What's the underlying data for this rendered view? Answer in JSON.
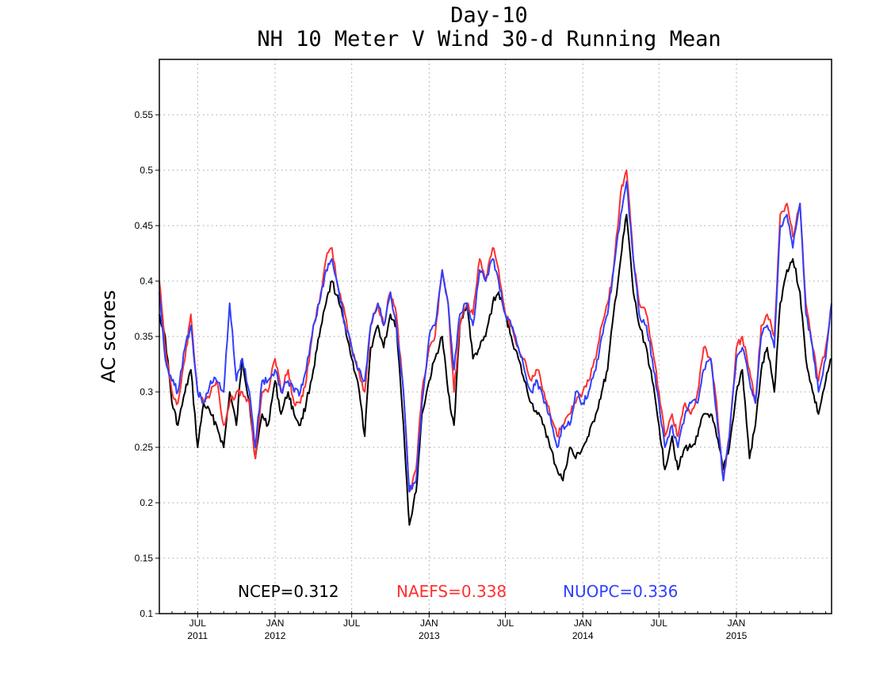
{
  "chart_data": {
    "type": "line",
    "title": "Day-10",
    "subtitle": "NH 10 Meter V Wind 30-d Running Mean",
    "ylabel": "AC scores",
    "xlabel": "",
    "xlim": [
      "2011-04-01",
      "2015-08-15"
    ],
    "ylim": [
      0.1,
      0.6
    ],
    "grid": true,
    "y_ticks": [
      {
        "value": 0.1,
        "label": "0.1"
      },
      {
        "value": 0.15,
        "label": "0.15"
      },
      {
        "value": 0.2,
        "label": "0.2"
      },
      {
        "value": 0.25,
        "label": "0.25"
      },
      {
        "value": 0.3,
        "label": "0.3"
      },
      {
        "value": 0.35,
        "label": "0.35"
      },
      {
        "value": 0.4,
        "label": "0.4"
      },
      {
        "value": 0.45,
        "label": "0.45"
      },
      {
        "value": 0.5,
        "label": "0.5"
      },
      {
        "value": 0.55,
        "label": "0.55"
      }
    ],
    "x_ticks": [
      {
        "date": "2011-07-01",
        "label": "JUL",
        "year": "2011"
      },
      {
        "date": "2012-01-01",
        "label": "JAN",
        "year": "2012"
      },
      {
        "date": "2012-07-01",
        "label": "JUL",
        "year": ""
      },
      {
        "date": "2013-01-01",
        "label": "JAN",
        "year": "2013"
      },
      {
        "date": "2013-07-01",
        "label": "JUL",
        "year": ""
      },
      {
        "date": "2014-01-01",
        "label": "JAN",
        "year": "2014"
      },
      {
        "date": "2014-07-01",
        "label": "JUL",
        "year": ""
      },
      {
        "date": "2015-01-01",
        "label": "JAN",
        "year": "2015"
      }
    ],
    "x_dates": [
      "2011-04-01",
      "2011-04-15",
      "2011-05-01",
      "2011-05-15",
      "2011-06-01",
      "2011-06-15",
      "2011-07-01",
      "2011-07-15",
      "2011-08-01",
      "2011-08-15",
      "2011-09-01",
      "2011-09-15",
      "2011-10-01",
      "2011-10-15",
      "2011-11-01",
      "2011-11-15",
      "2011-12-01",
      "2011-12-15",
      "2012-01-01",
      "2012-01-15",
      "2012-02-01",
      "2012-02-15",
      "2012-03-01",
      "2012-03-15",
      "2012-04-01",
      "2012-04-15",
      "2012-05-01",
      "2012-05-15",
      "2012-06-01",
      "2012-06-15",
      "2012-07-01",
      "2012-07-15",
      "2012-08-01",
      "2012-08-15",
      "2012-09-01",
      "2012-09-15",
      "2012-10-01",
      "2012-10-15",
      "2012-11-01",
      "2012-11-15",
      "2012-12-01",
      "2012-12-15",
      "2013-01-01",
      "2013-01-15",
      "2013-02-01",
      "2013-02-15",
      "2013-03-01",
      "2013-03-15",
      "2013-04-01",
      "2013-04-15",
      "2013-05-01",
      "2013-05-15",
      "2013-06-01",
      "2013-06-15",
      "2013-07-01",
      "2013-07-15",
      "2013-08-01",
      "2013-08-15",
      "2013-09-01",
      "2013-09-15",
      "2013-10-01",
      "2013-10-15",
      "2013-11-01",
      "2013-11-15",
      "2013-12-01",
      "2013-12-15",
      "2014-01-01",
      "2014-01-15",
      "2014-02-01",
      "2014-02-15",
      "2014-03-01",
      "2014-03-15",
      "2014-04-01",
      "2014-04-15",
      "2014-05-01",
      "2014-05-15",
      "2014-06-01",
      "2014-06-15",
      "2014-07-01",
      "2014-07-15",
      "2014-08-01",
      "2014-08-15",
      "2014-09-01",
      "2014-09-15",
      "2014-10-01",
      "2014-10-15",
      "2014-11-01",
      "2014-11-15",
      "2014-12-01",
      "2014-12-15",
      "2015-01-01",
      "2015-01-15",
      "2015-02-01",
      "2015-02-15",
      "2015-03-01",
      "2015-03-15",
      "2015-04-01",
      "2015-04-15",
      "2015-05-01",
      "2015-05-15",
      "2015-06-01",
      "2015-06-15",
      "2015-07-01",
      "2015-07-15",
      "2015-08-01",
      "2015-08-15"
    ],
    "series": [
      {
        "name": "NCEP",
        "color": "#000000",
        "summary": "NCEP=0.312",
        "values": [
          0.37,
          0.35,
          0.29,
          0.27,
          0.3,
          0.32,
          0.25,
          0.29,
          0.28,
          0.27,
          0.25,
          0.3,
          0.27,
          0.33,
          0.29,
          0.24,
          0.28,
          0.27,
          0.31,
          0.28,
          0.3,
          0.28,
          0.27,
          0.29,
          0.32,
          0.35,
          0.38,
          0.4,
          0.38,
          0.36,
          0.33,
          0.31,
          0.26,
          0.34,
          0.36,
          0.34,
          0.37,
          0.36,
          0.27,
          0.18,
          0.21,
          0.28,
          0.31,
          0.33,
          0.35,
          0.3,
          0.27,
          0.36,
          0.38,
          0.33,
          0.34,
          0.35,
          0.38,
          0.39,
          0.37,
          0.35,
          0.33,
          0.31,
          0.29,
          0.28,
          0.27,
          0.25,
          0.23,
          0.22,
          0.25,
          0.24,
          0.25,
          0.26,
          0.28,
          0.3,
          0.32,
          0.37,
          0.42,
          0.46,
          0.39,
          0.36,
          0.34,
          0.31,
          0.27,
          0.23,
          0.26,
          0.23,
          0.25,
          0.25,
          0.26,
          0.28,
          0.28,
          0.26,
          0.23,
          0.25,
          0.3,
          0.32,
          0.24,
          0.27,
          0.32,
          0.34,
          0.3,
          0.38,
          0.41,
          0.42,
          0.39,
          0.33,
          0.3,
          0.28,
          0.31,
          0.33
        ]
      },
      {
        "name": "NAEFS",
        "color": "#ff3030",
        "summary": "NAEFS=0.338",
        "values": [
          0.4,
          0.34,
          0.3,
          0.29,
          0.33,
          0.37,
          0.3,
          0.29,
          0.3,
          0.31,
          0.27,
          0.29,
          0.3,
          0.3,
          0.29,
          0.24,
          0.3,
          0.3,
          0.33,
          0.3,
          0.32,
          0.29,
          0.29,
          0.31,
          0.36,
          0.38,
          0.42,
          0.43,
          0.39,
          0.37,
          0.34,
          0.32,
          0.3,
          0.36,
          0.38,
          0.36,
          0.39,
          0.37,
          0.3,
          0.21,
          0.23,
          0.3,
          0.34,
          0.35,
          0.41,
          0.38,
          0.3,
          0.36,
          0.38,
          0.37,
          0.42,
          0.4,
          0.43,
          0.41,
          0.37,
          0.36,
          0.34,
          0.33,
          0.31,
          0.32,
          0.3,
          0.28,
          0.26,
          0.27,
          0.28,
          0.29,
          0.3,
          0.31,
          0.33,
          0.36,
          0.38,
          0.41,
          0.48,
          0.5,
          0.42,
          0.38,
          0.37,
          0.34,
          0.3,
          0.26,
          0.28,
          0.26,
          0.29,
          0.28,
          0.3,
          0.34,
          0.33,
          0.29,
          0.22,
          0.26,
          0.34,
          0.35,
          0.32,
          0.29,
          0.36,
          0.37,
          0.35,
          0.46,
          0.47,
          0.44,
          0.47,
          0.38,
          0.34,
          0.31,
          0.34,
          0.38
        ]
      },
      {
        "name": "NUOPC",
        "color": "#3040ff",
        "summary": "NUOPC=0.336",
        "values": [
          0.39,
          0.33,
          0.31,
          0.3,
          0.34,
          0.36,
          0.3,
          0.29,
          0.31,
          0.31,
          0.3,
          0.38,
          0.31,
          0.33,
          0.3,
          0.25,
          0.31,
          0.31,
          0.32,
          0.3,
          0.31,
          0.3,
          0.3,
          0.32,
          0.36,
          0.38,
          0.41,
          0.42,
          0.39,
          0.36,
          0.34,
          0.32,
          0.31,
          0.36,
          0.38,
          0.36,
          0.39,
          0.36,
          0.3,
          0.21,
          0.22,
          0.29,
          0.35,
          0.36,
          0.41,
          0.38,
          0.32,
          0.37,
          0.38,
          0.36,
          0.41,
          0.4,
          0.42,
          0.4,
          0.37,
          0.36,
          0.34,
          0.32,
          0.3,
          0.31,
          0.29,
          0.28,
          0.25,
          0.27,
          0.27,
          0.3,
          0.29,
          0.3,
          0.32,
          0.35,
          0.37,
          0.41,
          0.46,
          0.49,
          0.42,
          0.37,
          0.36,
          0.33,
          0.29,
          0.25,
          0.27,
          0.25,
          0.28,
          0.29,
          0.29,
          0.32,
          0.33,
          0.28,
          0.22,
          0.26,
          0.33,
          0.34,
          0.31,
          0.29,
          0.35,
          0.36,
          0.34,
          0.45,
          0.46,
          0.43,
          0.47,
          0.37,
          0.34,
          0.3,
          0.33,
          0.38
        ]
      }
    ]
  }
}
